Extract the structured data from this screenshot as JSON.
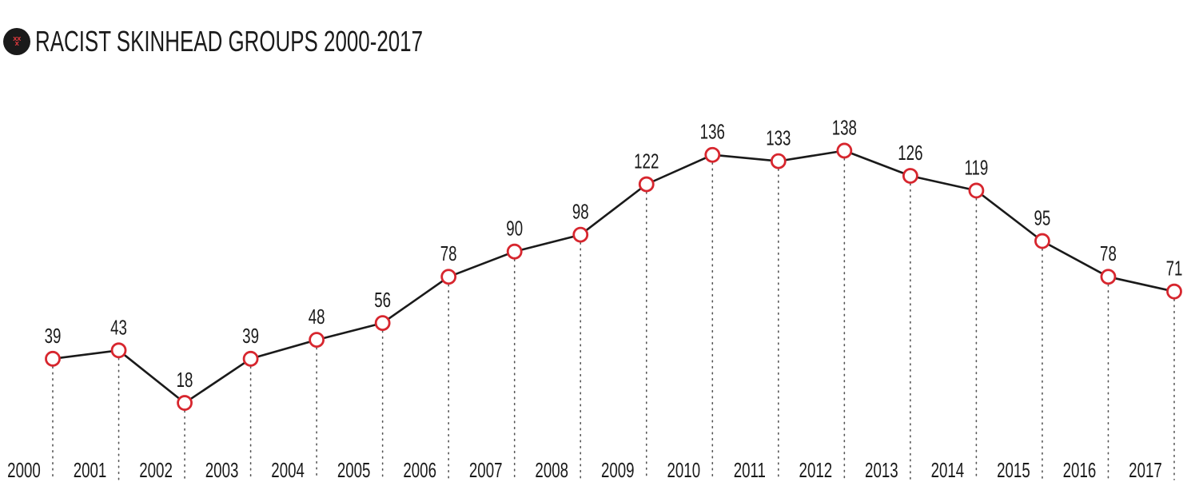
{
  "header": {
    "icon": "xxx-badge-icon",
    "icon_text": "XXX",
    "icon_colors": {
      "background": "#1a1a1a",
      "mark": "#e03a3e"
    }
  },
  "chart_data": {
    "type": "line",
    "title": "RACIST SKINHEAD GROUPS 2000-2017",
    "xlabel": "",
    "ylabel": "",
    "categories": [
      "2000",
      "2001",
      "2002",
      "2003",
      "2004",
      "2005",
      "2006",
      "2007",
      "2008",
      "2009",
      "2010",
      "2011",
      "2012",
      "2013",
      "2014",
      "2015",
      "2016",
      "2017"
    ],
    "series": [
      {
        "values": [
          39,
          43,
          18,
          39,
          48,
          56,
          78,
          90,
          98,
          122,
          136,
          133,
          138,
          126,
          119,
          95,
          78,
          71
        ]
      }
    ],
    "data_labels": true,
    "grid": "dotted vertical lines at each year",
    "line_color": "#1a1a1a",
    "marker_color": "#d7262e",
    "marker_fill": "#ffffff",
    "ylim": [
      -20,
      180
    ]
  }
}
